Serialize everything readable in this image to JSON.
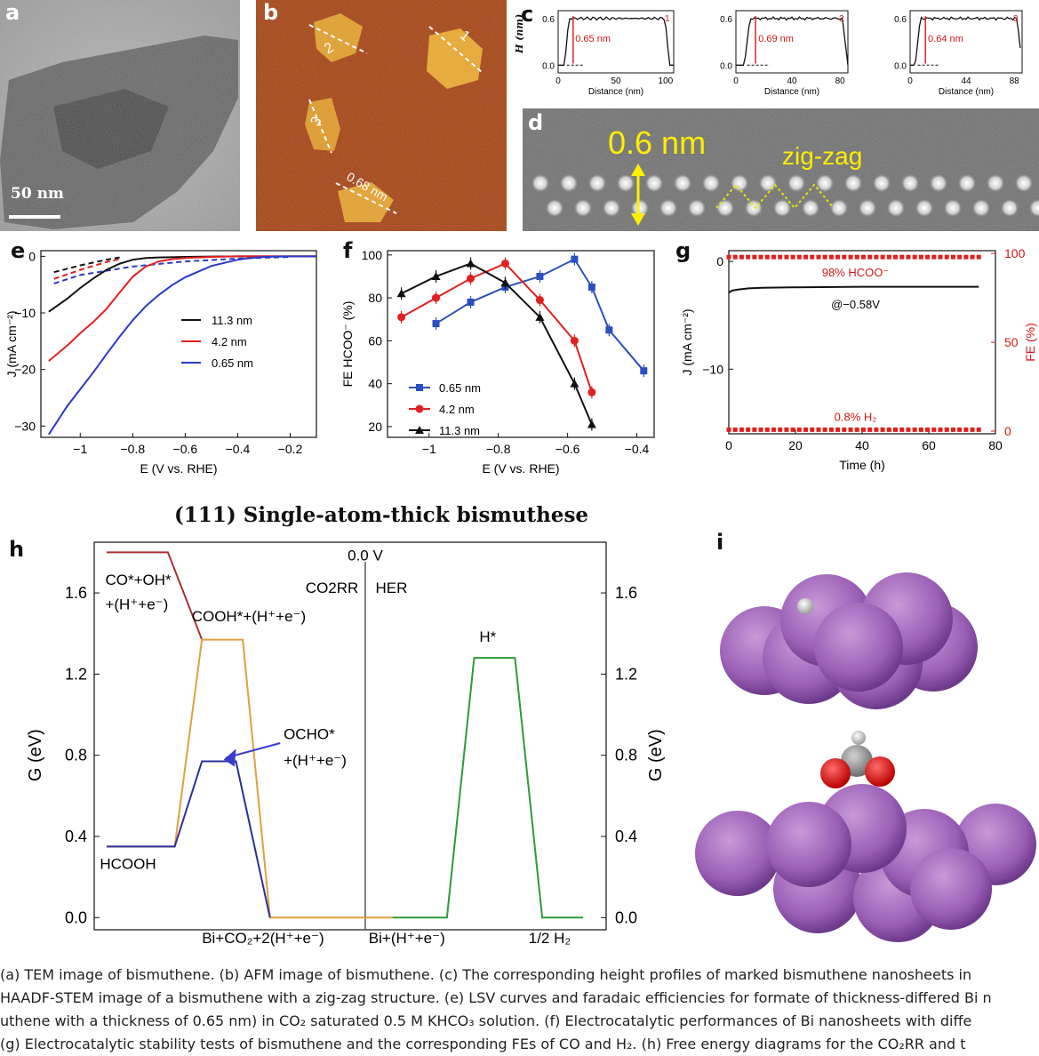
{
  "panels": {
    "a": {
      "letter": "a",
      "scale_bar": "50 nm"
    },
    "b": {
      "letter": "b",
      "line_labels": [
        "1",
        "2",
        "3",
        "0.68 nm"
      ]
    },
    "c": {
      "letter": "c",
      "ylabel": "H (nm)",
      "profiles": [
        {
          "id": "1",
          "height_label": "0.65 nm",
          "xticks": [
            "0",
            "50",
            "100"
          ],
          "xlabel": "Distance (nm)",
          "yticks": [
            "0.0",
            "0.6"
          ]
        },
        {
          "id": "2",
          "height_label": "0.69 nm",
          "xticks": [
            "0",
            "40",
            "80"
          ],
          "xlabel": "Distance (nm)",
          "yticks": [
            "0.0",
            "0.6"
          ]
        },
        {
          "id": "3",
          "height_label": "0.64 nm",
          "xticks": [
            "0",
            "44",
            "88"
          ],
          "xlabel": "Distance (nm)",
          "yticks": [
            "0.0",
            "0.6"
          ]
        }
      ]
    },
    "d": {
      "letter": "d",
      "label_thickness": "0.6 nm",
      "label_structure": "zig-zag"
    },
    "e": {
      "letter": "e"
    },
    "f": {
      "letter": "f"
    },
    "g": {
      "letter": "g",
      "annotation_fe": "98% HCOO⁻",
      "annotation_potential": "@−0.58V",
      "annotation_h2": "0.8% H₂"
    },
    "h": {
      "letter": "h",
      "title": "(111) Single-atom-thick bismuthese",
      "labels": {
        "co_oh": "CO*+OH*",
        "co_oh2": "+(H⁺+e⁻)",
        "cooh": "COOH*+(H⁺+e⁻)",
        "ocho": "OCHO*",
        "ocho2": "+(H⁺+e⁻)",
        "hcooh": "HCOOH",
        "co2rr": "CO2RR",
        "her": "HER",
        "zero_v": "0.0 V",
        "hstar": "H*",
        "bi_co2": "Bi+CO₂+2(H⁺+e⁻)",
        "bi_h": "Bi+(H⁺+e⁻)",
        "half_h2": "1/2 H₂"
      }
    },
    "i": {
      "letter": "i"
    }
  },
  "chart_data": [
    {
      "type": "line",
      "panel": "e",
      "xlabel": "E (V vs. RHE)",
      "ylabel": "J (mA cm⁻²)",
      "xlim": [
        -1.15,
        -0.1
      ],
      "ylim": [
        -32,
        1
      ],
      "xticks": [
        -1.0,
        -0.8,
        -0.6,
        -0.4,
        -0.2
      ],
      "yticks": [
        0,
        -10,
        -20,
        -30
      ],
      "legend_position": "center-right",
      "series": [
        {
          "name": "11.3 nm",
          "color": "#111111",
          "x": [
            -1.12,
            -1.05,
            -1.0,
            -0.95,
            -0.9,
            -0.85,
            -0.8,
            -0.75,
            -0.7,
            -0.6,
            -0.5,
            -0.4,
            -0.3,
            -0.2,
            -0.1
          ],
          "y": [
            -9.8,
            -7.5,
            -5.6,
            -3.9,
            -2.4,
            -1.3,
            -0.6,
            -0.3,
            -0.2,
            -0.1,
            -0.05,
            0,
            0,
            0,
            0
          ]
        },
        {
          "name": "4.2 nm",
          "color": "#e02020",
          "x": [
            -1.12,
            -1.05,
            -1.0,
            -0.95,
            -0.9,
            -0.85,
            -0.8,
            -0.75,
            -0.7,
            -0.65,
            -0.6,
            -0.5,
            -0.4,
            -0.3,
            -0.2,
            -0.1
          ],
          "y": [
            -18.5,
            -15.8,
            -13.6,
            -11.6,
            -9.3,
            -6.4,
            -3.6,
            -1.8,
            -0.9,
            -0.5,
            -0.3,
            -0.1,
            0,
            0,
            0,
            0
          ]
        },
        {
          "name": "0.65 nm",
          "color": "#2b38c8",
          "x": [
            -1.12,
            -1.05,
            -1.0,
            -0.95,
            -0.9,
            -0.85,
            -0.8,
            -0.75,
            -0.7,
            -0.65,
            -0.6,
            -0.5,
            -0.4,
            -0.35,
            -0.3,
            -0.2,
            -0.1
          ],
          "y": [
            -31.5,
            -26.5,
            -23.5,
            -20.5,
            -17.3,
            -14.2,
            -11.3,
            -8.8,
            -6.8,
            -5.1,
            -3.7,
            -1.7,
            -0.6,
            -0.3,
            -0.1,
            0,
            0
          ]
        }
      ],
      "dashed_series": [
        {
          "color": "#111111",
          "x": [
            -1.1,
            -1.0,
            -0.9,
            -0.85
          ],
          "y": [
            -2.8,
            -1.6,
            -0.6,
            -0.2
          ]
        },
        {
          "color": "#e02020",
          "x": [
            -1.1,
            -1.0,
            -0.9,
            -0.85
          ],
          "y": [
            -4.0,
            -2.4,
            -1.0,
            -0.5
          ]
        },
        {
          "color": "#2b38c8",
          "x": [
            -1.1,
            -1.0,
            -0.8,
            -0.6,
            -0.4,
            -0.2
          ],
          "y": [
            -4.8,
            -3.3,
            -1.8,
            -0.9,
            -0.4,
            -0.1
          ]
        }
      ]
    },
    {
      "type": "line",
      "panel": "f",
      "xlabel": "E (V vs. RHE)",
      "ylabel": "FE HCOO⁻ (%)",
      "xlim": [
        -1.12,
        -0.35
      ],
      "ylim": [
        15,
        102
      ],
      "xticks": [
        -1.0,
        -0.8,
        -0.6,
        -0.4
      ],
      "yticks": [
        20,
        40,
        60,
        80,
        100
      ],
      "legend_position": "bottom-left",
      "series": [
        {
          "name": "0.65 nm",
          "color": "#2b4fc0",
          "marker": "square",
          "x": [
            -0.98,
            -0.88,
            -0.78,
            -0.68,
            -0.58,
            -0.53,
            -0.48,
            -0.38
          ],
          "y": [
            68,
            78,
            85,
            90,
            98,
            85,
            65,
            46
          ]
        },
        {
          "name": "4.2 nm",
          "color": "#e02020",
          "marker": "circle",
          "x": [
            -1.08,
            -0.98,
            -0.88,
            -0.78,
            -0.68,
            -0.58,
            -0.53
          ],
          "y": [
            71,
            80,
            89,
            96,
            79,
            60,
            36
          ]
        },
        {
          "name": "11.3 nm",
          "color": "#111111",
          "marker": "triangle",
          "x": [
            -1.08,
            -0.98,
            -0.88,
            -0.78,
            -0.68,
            -0.58,
            -0.53
          ],
          "y": [
            82,
            90,
            96,
            87,
            71,
            40,
            21
          ]
        }
      ]
    },
    {
      "type": "line",
      "panel": "g",
      "xlabel": "Time (h)",
      "ylabel": "J (mA cm⁻²)",
      "ylabel_right": "FE (%)",
      "xlim": [
        0,
        80
      ],
      "ylim": [
        -16,
        1
      ],
      "ylim_right": [
        0,
        100
      ],
      "xticks": [
        0,
        20,
        40,
        60,
        80
      ],
      "yticks": [
        0,
        -10
      ],
      "yticks_right": [
        0,
        50,
        100
      ],
      "series": [
        {
          "name": "J",
          "color": "#111111",
          "x": [
            0,
            1,
            3,
            6,
            10,
            20,
            40,
            60,
            75
          ],
          "y": [
            -2.9,
            -2.7,
            -2.6,
            -2.5,
            -2.45,
            -2.4,
            -2.35,
            -2.35,
            -2.35
          ]
        },
        {
          "name": "FE HCOO⁻",
          "axis": "right",
          "color": "#e02020",
          "marker": "square",
          "x_start": 0,
          "x_end": 75,
          "count": 40,
          "value": 98
        },
        {
          "name": "FE H2",
          "axis": "right",
          "color": "#e02020",
          "marker": "square",
          "x_start": 0,
          "x_end": 75,
          "count": 40,
          "value": 0.8
        }
      ]
    },
    {
      "type": "line",
      "panel": "h",
      "title": "(111) Single-atom-thick bismuthese",
      "ylabel": "G (eV)",
      "ylim": [
        -0.06,
        1.85
      ],
      "yticks": [
        0.0,
        0.4,
        0.8,
        1.2,
        1.6
      ],
      "series": [
        {
          "name": "CO path",
          "color": "#a83030",
          "x": [
            0.0,
            0.9,
            1.4
          ],
          "y": [
            1.8,
            1.8,
            1.37
          ]
        },
        {
          "name": "COOH path",
          "color": "#e0a040",
          "x": [
            0.0,
            1.0,
            1.4,
            2.0,
            2.4,
            3.4,
            4.2
          ],
          "y": [
            0.35,
            0.35,
            1.37,
            1.37,
            0.0,
            0.0,
            0.0
          ]
        },
        {
          "name": "OCHO path",
          "color": "#2b2f9a",
          "x": [
            0.0,
            1.0,
            1.4,
            1.9,
            2.4
          ],
          "y": [
            0.35,
            0.35,
            0.77,
            0.77,
            0.0
          ]
        },
        {
          "name": "HER path",
          "color": "#2e9a3a",
          "x": [
            4.2,
            5.0,
            5.4,
            6.0,
            6.4,
            7.0
          ],
          "y": [
            0.0,
            0.0,
            1.28,
            1.28,
            0.0,
            0.0
          ]
        }
      ]
    }
  ],
  "caption": {
    "lines": [
      "(a) TEM image of bismuthene. (b) AFM image of bismuthene. (c) The corresponding height profiles of marked bismuthene nanosheets in",
      "HAADF-STEM image of a bismuthene with a zig-zag structure. (e) LSV curves and faradaic efficiencies for formate of thickness-differed Bi n",
      "uthene with a thickness of 0.65 nm) in CO₂ saturated 0.5 M KHCO₃ solution. (f) Electrocatalytic performances of Bi nanosheets with diffe",
      "(g) Electrocatalytic stability tests of bismuthene and the corresponding FEs of CO and H₂. (h) Free energy diagrams for the CO₂RR and t"
    ]
  }
}
